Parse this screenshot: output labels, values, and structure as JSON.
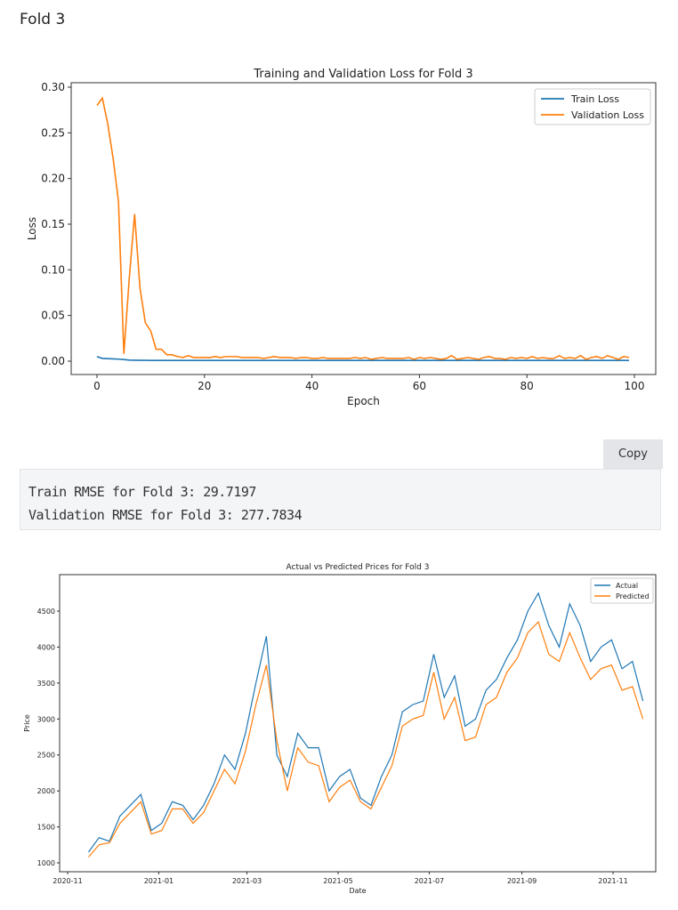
{
  "heading": "Fold 3",
  "copy_label": "Copy",
  "output_lines": [
    "Train RMSE for Fold 3: 29.7197",
    "Validation RMSE for Fold 3: 277.7834"
  ],
  "colors": {
    "train": "#1f77b4",
    "val": "#ff7f0e"
  },
  "chart_data": [
    {
      "type": "line",
      "title": "Training and Validation Loss for Fold 3",
      "xlabel": "Epoch",
      "ylabel": "Loss",
      "xlim": [
        -5,
        104
      ],
      "ylim": [
        -0.015,
        0.3
      ],
      "xticks": [
        0,
        20,
        40,
        60,
        80,
        100
      ],
      "yticks": [
        0.0,
        0.05,
        0.1,
        0.15,
        0.2,
        0.25,
        0.3
      ],
      "ytick_labels": [
        "0.00",
        "0.05",
        "0.10",
        "0.15",
        "0.20",
        "0.25",
        "0.30"
      ],
      "legend": "top-right",
      "series": [
        {
          "name": "Train Loss",
          "values": [
            0.005,
            0.003,
            0.0027,
            0.0025,
            0.0022,
            0.0018,
            0.0012,
            0.001,
            0.0009,
            0.0009,
            0.0008
          ]
        },
        {
          "name": "Validation Loss",
          "values": [
            0.28,
            0.288,
            0.26,
            0.222,
            0.175,
            0.008,
            0.09,
            0.161,
            0.08,
            0.042,
            0.033,
            0.013,
            0.013,
            0.007,
            0.007,
            0.005,
            0.004,
            0.006,
            0.004,
            0.004,
            0.004,
            0.004,
            0.005,
            0.004,
            0.005,
            0.005,
            0.005,
            0.004,
            0.004,
            0.004,
            0.004,
            0.003,
            0.004,
            0.005,
            0.004,
            0.004,
            0.004,
            0.003,
            0.004,
            0.004,
            0.003,
            0.003,
            0.004,
            0.003,
            0.003,
            0.003,
            0.003,
            0.003,
            0.004,
            0.003,
            0.004,
            0.002,
            0.003,
            0.004,
            0.003,
            0.003,
            0.003,
            0.003,
            0.004,
            0.002,
            0.004,
            0.003,
            0.004,
            0.003,
            0.002,
            0.003,
            0.006,
            0.002,
            0.003,
            0.004,
            0.003,
            0.002,
            0.004,
            0.005,
            0.003,
            0.003,
            0.002,
            0.004,
            0.003,
            0.004,
            0.003,
            0.005,
            0.003,
            0.004,
            0.003,
            0.003,
            0.006,
            0.003,
            0.004,
            0.003,
            0.006,
            0.002,
            0.004,
            0.005,
            0.003,
            0.006,
            0.004,
            0.002,
            0.005,
            0.004
          ]
        }
      ]
    },
    {
      "type": "line",
      "title": "Actual vs Predicted Prices for Fold 3",
      "xlabel": "Date",
      "ylabel": "Price",
      "ylim": [
        900,
        4980
      ],
      "xtick_labels": [
        "2020-11",
        "2021-01",
        "2021-03",
        "2021-05",
        "2021-07",
        "2021-09",
        "2021-11"
      ],
      "yticks": [
        1000,
        1500,
        2000,
        2500,
        3000,
        3500,
        4000,
        4500
      ],
      "legend": "top-right",
      "x_start": "2020-11-15",
      "x_step_days": 7,
      "series": [
        {
          "name": "Actual",
          "values": [
            1150,
            1350,
            1300,
            1650,
            1800,
            1950,
            1450,
            1550,
            1850,
            1800,
            1600,
            1800,
            2100,
            2500,
            2300,
            2800,
            3500,
            4150,
            2500,
            2200,
            2800,
            2600,
            2600,
            2000,
            2200,
            2300,
            1900,
            1800,
            2200,
            2500,
            3100,
            3200,
            3250,
            3900,
            3300,
            3600,
            2900,
            3000,
            3400,
            3550,
            3850,
            4100,
            4500,
            4750,
            4300,
            4000,
            4600,
            4300,
            3800,
            4000,
            4100,
            3700,
            3800,
            3250
          ]
        },
        {
          "name": "Predicted",
          "values": [
            1080,
            1250,
            1280,
            1550,
            1700,
            1850,
            1400,
            1450,
            1750,
            1750,
            1550,
            1700,
            2000,
            2300,
            2100,
            2550,
            3200,
            3750,
            2700,
            2000,
            2600,
            2400,
            2350,
            1850,
            2050,
            2150,
            1850,
            1750,
            2050,
            2350,
            2900,
            3000,
            3050,
            3650,
            3000,
            3300,
            2700,
            2750,
            3200,
            3300,
            3650,
            3850,
            4200,
            4350,
            3900,
            3800,
            4200,
            3850,
            3550,
            3700,
            3750,
            3400,
            3450,
            3000
          ]
        }
      ]
    }
  ]
}
